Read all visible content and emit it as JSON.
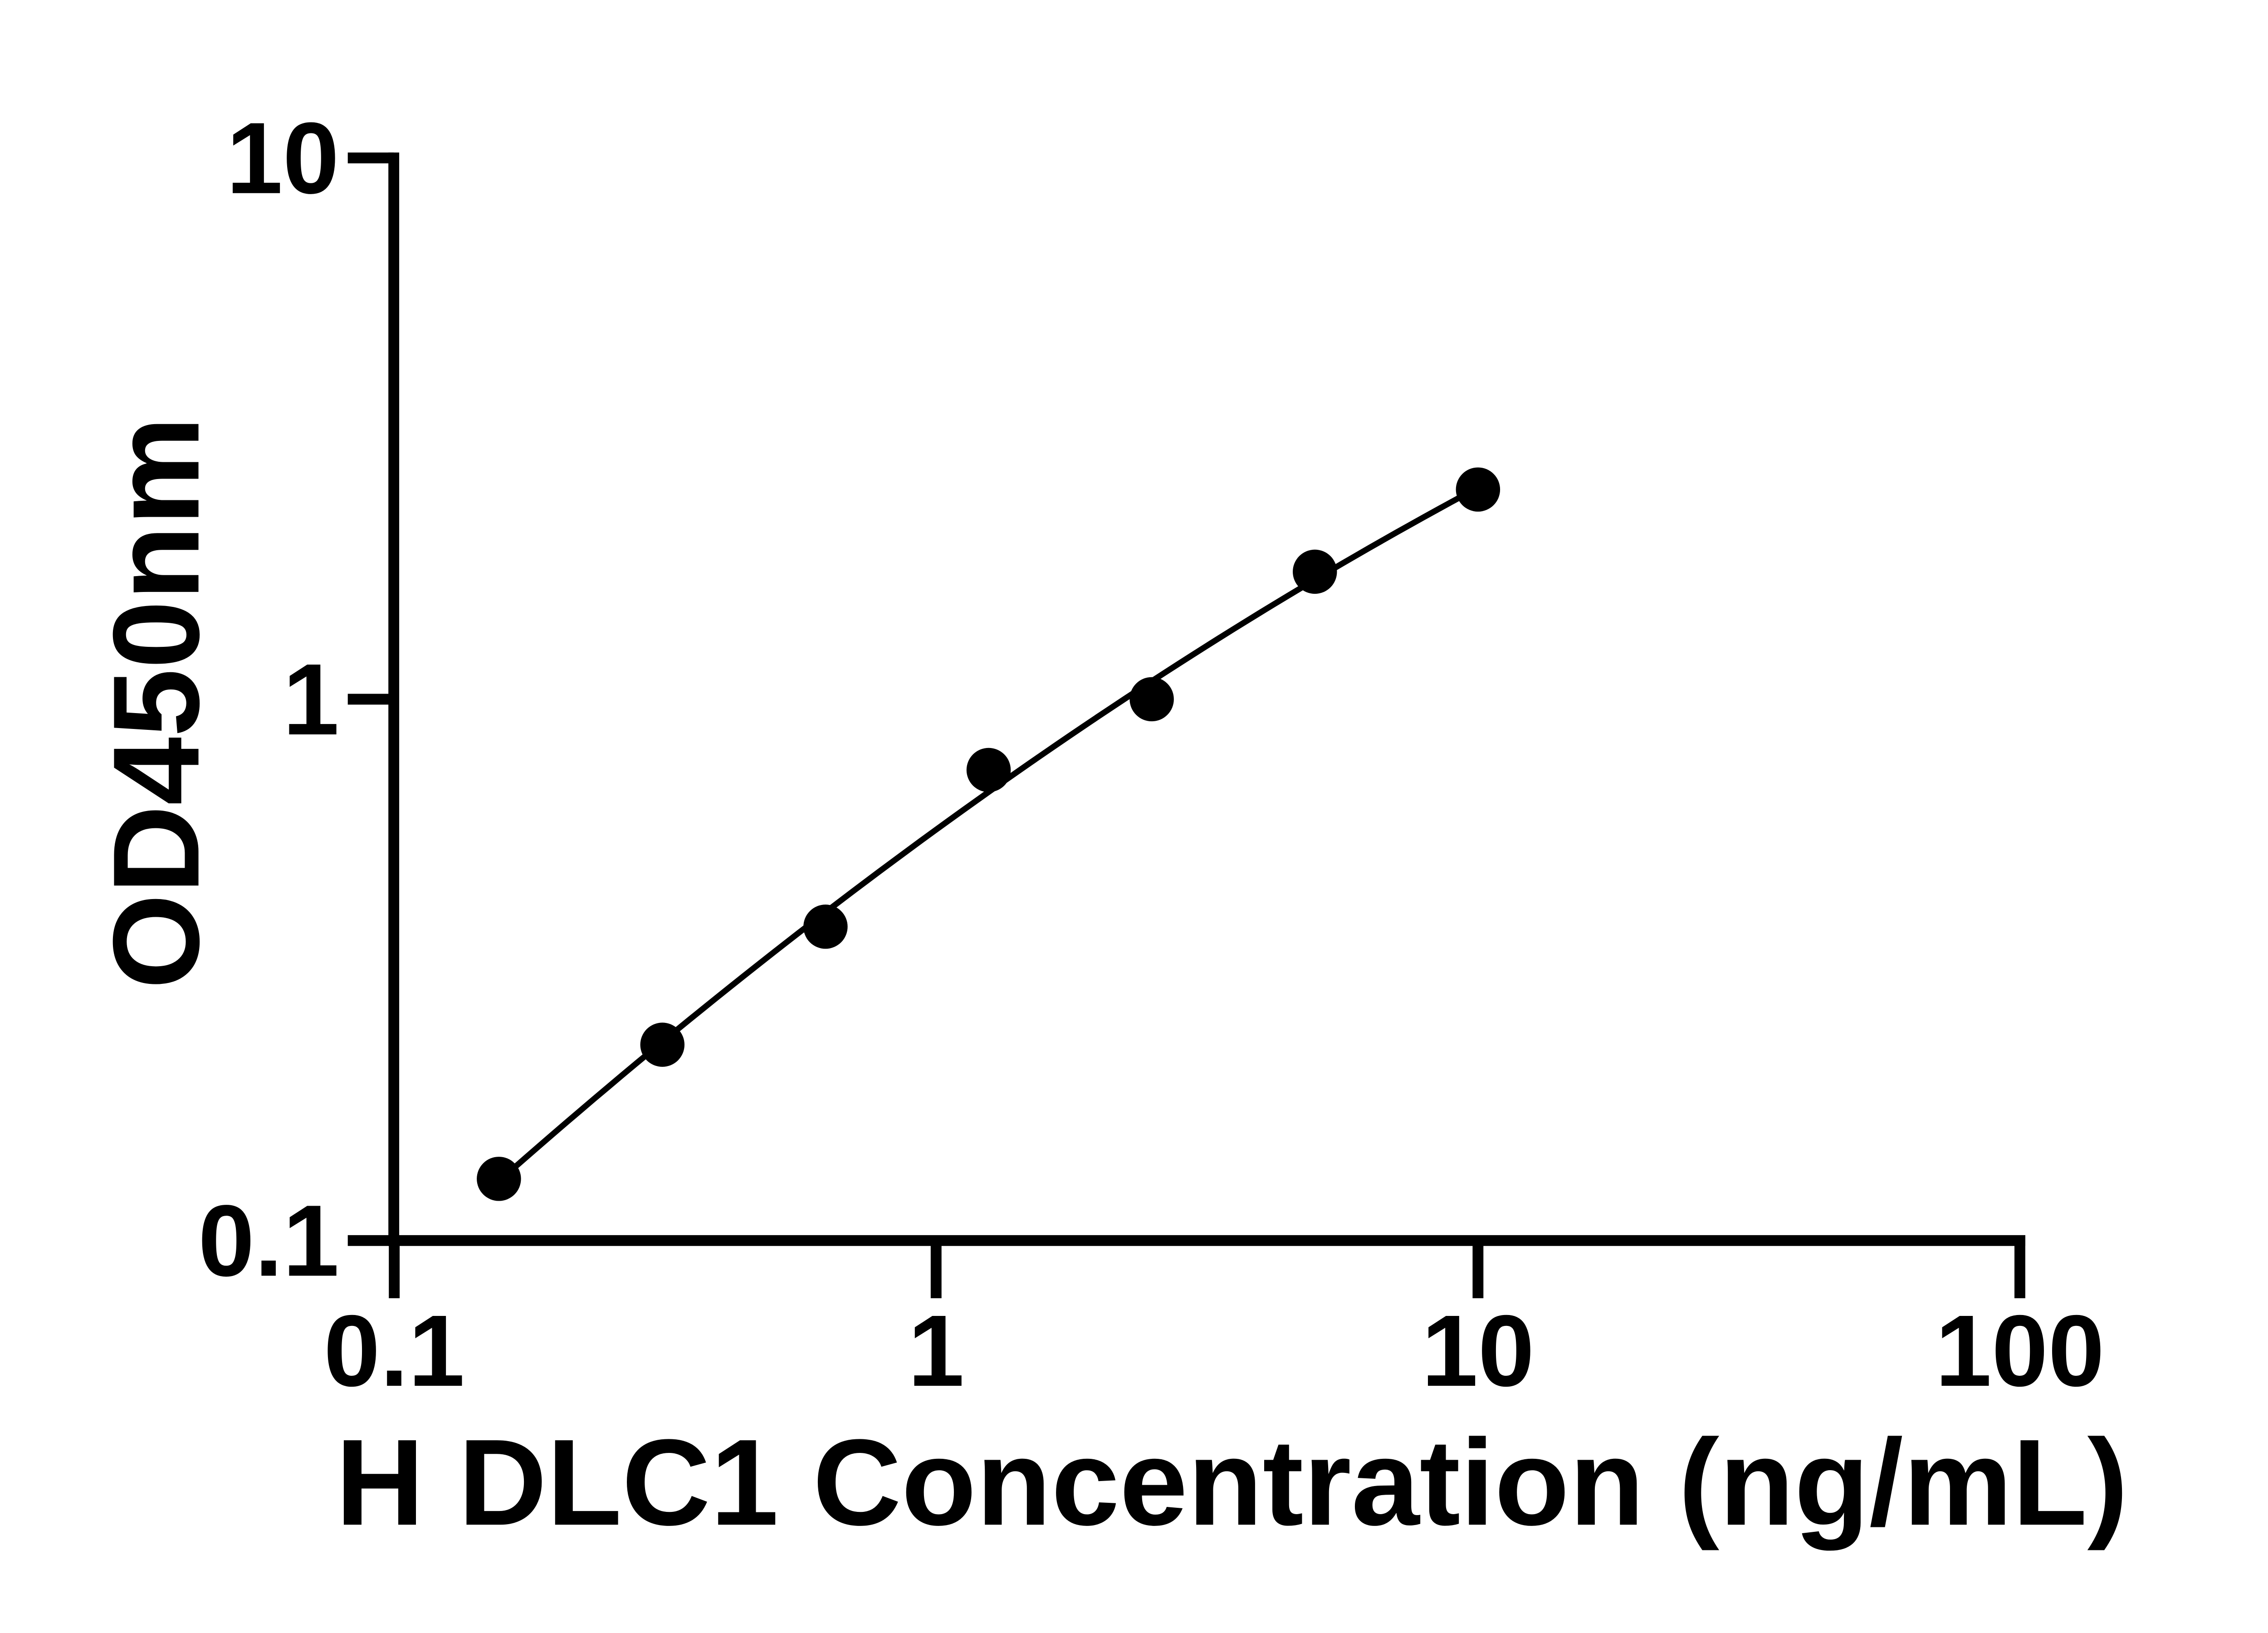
{
  "figure": {
    "background_color": "#ffffff",
    "line_color": "#000000"
  },
  "chart_data": {
    "type": "scatter",
    "title": "",
    "xlabel": "H DLC1 Concentration (ng/mL)",
    "ylabel": "OD450nm",
    "x_scale": "log10",
    "y_scale": "log10",
    "xlim": [
      0.1,
      100
    ],
    "ylim": [
      0.1,
      10
    ],
    "grid": false,
    "legend": null,
    "x_ticks": [
      {
        "value": 0.1,
        "label": "0.1"
      },
      {
        "value": 1,
        "label": "1"
      },
      {
        "value": 10,
        "label": "10"
      },
      {
        "value": 100,
        "label": "100"
      }
    ],
    "y_ticks": [
      {
        "value": 0.1,
        "label": "0.1"
      },
      {
        "value": 1,
        "label": "1"
      },
      {
        "value": 10,
        "label": "10"
      }
    ],
    "series": [
      {
        "name": "standard-curve-points",
        "marker": "filled-circle",
        "color": "#000000",
        "points": [
          {
            "x": 0.156,
            "y": 0.13
          },
          {
            "x": 0.3125,
            "y": 0.23
          },
          {
            "x": 0.625,
            "y": 0.38
          },
          {
            "x": 1.25,
            "y": 0.74
          },
          {
            "x": 2.5,
            "y": 1.0
          },
          {
            "x": 5,
            "y": 1.72
          },
          {
            "x": 10,
            "y": 2.44
          }
        ]
      }
    ],
    "fit_curve": {
      "type": "quadratic-loglog",
      "a": -0.1713,
      "b": 0.709,
      "c": -0.0957,
      "u_center": 0.097,
      "u_range": [
        -0.8069,
        1.0
      ],
      "color": "#000000"
    }
  }
}
